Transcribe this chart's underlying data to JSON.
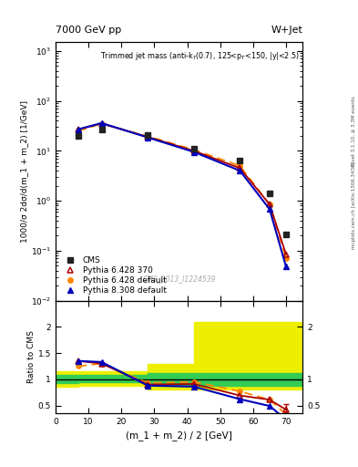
{
  "title_top": "7000 GeV pp",
  "title_right": "W+Jet",
  "annotation": "Trimmed jet mass (anti-k_{T}(0.7), 125<p_{T}<150, |y|<2.5)",
  "cms_label": "CMS_2013_I1224539",
  "ylabel_main": "1000/σ 2dσ/d(m_1 + m_2) [1/GeV]",
  "ylabel_ratio": "Ratio to CMS",
  "xlabel": "(m_1 + m_2) / 2 [GeV]",
  "rivet_label": "Rivet 3.1.10, ≥ 3.3M events",
  "arxiv_label": "[arXiv:1306.3436]",
  "mcplots_label": "mcplots.cern.ch",
  "x_cms": [
    7.0,
    14.0,
    28.0,
    42.0,
    56.0,
    65.0,
    70.0
  ],
  "y_cms": [
    20.0,
    27.0,
    21.0,
    11.0,
    6.5,
    1.4,
    0.21
  ],
  "x_p6_370": [
    7.0,
    14.0,
    28.0,
    42.0,
    56.0,
    65.0,
    70.0
  ],
  "y_p6_370": [
    27.0,
    35.0,
    19.0,
    10.0,
    4.5,
    0.85,
    0.085
  ],
  "x_p6_def": [
    7.0,
    14.0,
    28.0,
    42.0,
    56.0,
    65.0,
    70.0
  ],
  "y_p6_def": [
    25.0,
    35.0,
    19.5,
    10.5,
    5.0,
    0.85,
    0.07
  ],
  "x_p8_def": [
    7.0,
    14.0,
    28.0,
    42.0,
    56.0,
    65.0,
    70.0
  ],
  "y_p8_def": [
    27.0,
    36.0,
    18.5,
    9.5,
    4.0,
    0.68,
    0.048
  ],
  "ratio_x": [
    7.0,
    14.0,
    28.0,
    42.0,
    56.0,
    65.0,
    70.0
  ],
  "ratio_p6_370": [
    1.35,
    1.3,
    0.9,
    0.91,
    0.69,
    0.61,
    0.42
  ],
  "ratio_p6_def": [
    1.25,
    1.3,
    0.93,
    0.95,
    0.77,
    0.61,
    0.33
  ],
  "ratio_p8_def": [
    1.35,
    1.33,
    0.88,
    0.86,
    0.62,
    0.49,
    0.23
  ],
  "band_x": [
    0,
    7,
    14,
    28,
    42,
    56,
    70,
    75
  ],
  "band_inner_low": [
    0.92,
    0.92,
    0.95,
    0.95,
    0.88,
    0.88,
    0.88,
    0.88
  ],
  "band_inner_high": [
    1.08,
    1.08,
    1.08,
    1.08,
    1.12,
    1.12,
    1.12,
    1.12
  ],
  "band_outer_low": [
    0.85,
    0.85,
    0.88,
    0.88,
    0.8,
    0.8,
    0.8,
    0.8
  ],
  "band_outer_high": [
    1.15,
    1.15,
    1.15,
    1.15,
    1.3,
    2.1,
    2.1,
    2.1
  ],
  "color_p6_370": "#aa0000",
  "color_p6_def": "#ff8800",
  "color_p8_def": "#0000bb",
  "color_cms": "#222222",
  "color_green": "#33cc55",
  "color_yellow": "#eeee00",
  "xlim": [
    0,
    75
  ],
  "ylim_main": [
    0.01,
    1500
  ],
  "ylim_ratio": [
    0.35,
    2.5
  ],
  "figsize": [
    3.93,
    5.12
  ],
  "dpi": 100
}
